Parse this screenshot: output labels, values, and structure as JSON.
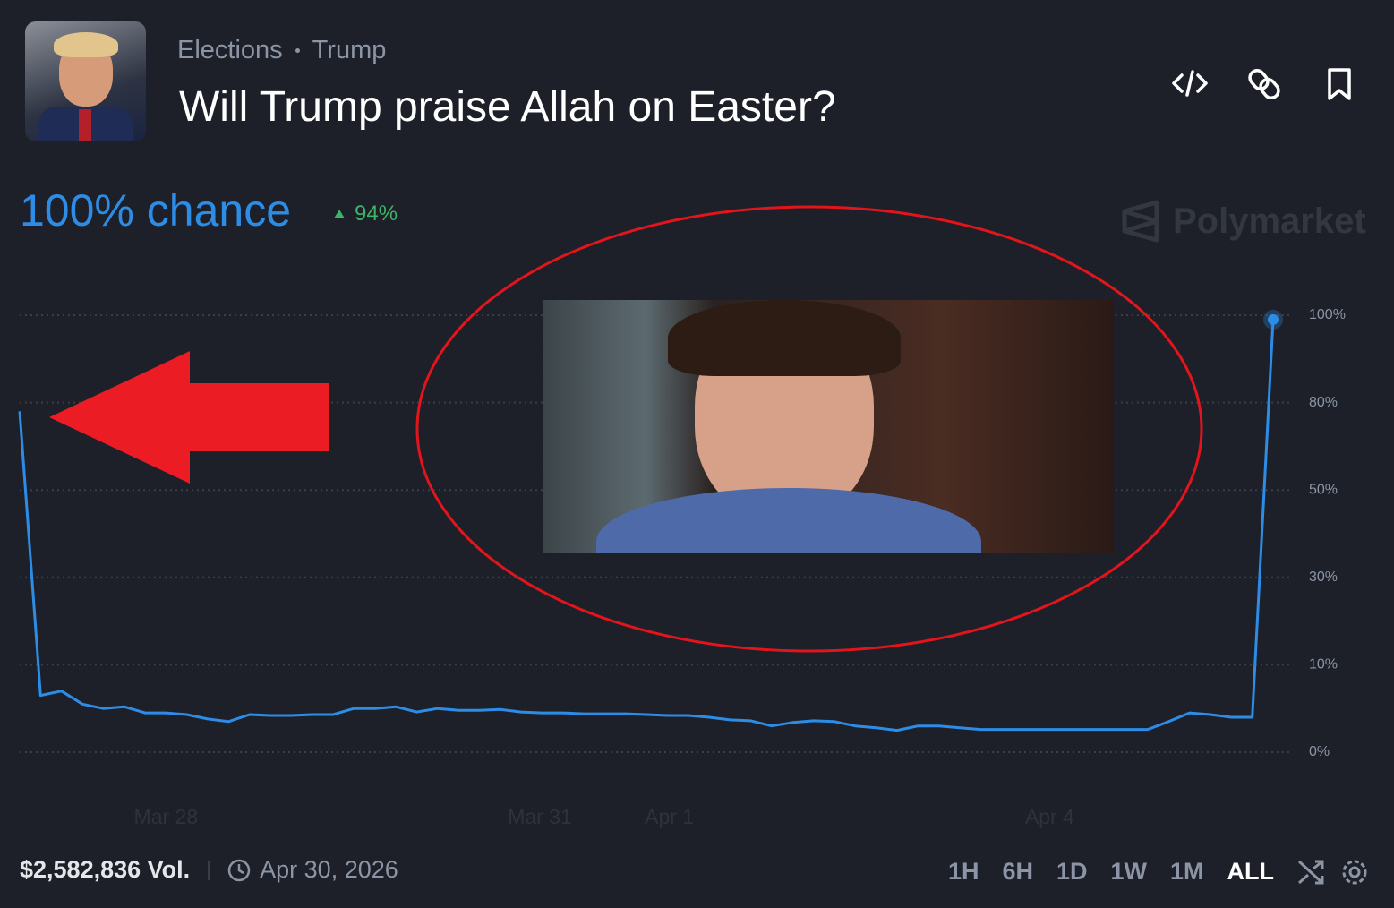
{
  "header": {
    "breadcrumb": [
      "Elections",
      "Trump"
    ],
    "title": "Will Trump praise Allah on Easter?",
    "chance": "100% chance",
    "change": "94%",
    "watermark": "Polymarket"
  },
  "chart_data": {
    "type": "line",
    "x": [
      0,
      1,
      2,
      3,
      4,
      5,
      6,
      7,
      8,
      9,
      10,
      11,
      12,
      13,
      14,
      15,
      16,
      17,
      18,
      19,
      20,
      21,
      22,
      23,
      24,
      25,
      26,
      27,
      28,
      29,
      30,
      31,
      32,
      33,
      34,
      35,
      36,
      37,
      38,
      39,
      40,
      41,
      42,
      43,
      44,
      45,
      46,
      47,
      48,
      49,
      50,
      51,
      52,
      53,
      54,
      55,
      56,
      57,
      58,
      59,
      60
    ],
    "series": [
      {
        "color": "#2d8ce6",
        "values": [
          77,
          6.5,
          7,
          5.5,
          5,
          5.2,
          4.5,
          4.5,
          4.3,
          3.8,
          3.5,
          4.3,
          4.2,
          4.2,
          4.3,
          4.3,
          5,
          5,
          5.2,
          4.6,
          5,
          4.8,
          4.8,
          4.9,
          4.6,
          4.5,
          4.5,
          4.4,
          4.4,
          4.4,
          4.3,
          4.2,
          4.2,
          4,
          3.7,
          3.6,
          3,
          3.4,
          3.6,
          3.5,
          3,
          2.8,
          2.5,
          3,
          3,
          2.8,
          2.6,
          2.6,
          2.6,
          2.6,
          2.6,
          2.6,
          2.6,
          2.6,
          2.6,
          3.5,
          4.5,
          4.3,
          4,
          4,
          99
        ]
      }
    ],
    "xlim": [
      0,
      60
    ],
    "xticks": [
      {
        "value": 7,
        "label": "Mar 28"
      },
      {
        "value": 24.9,
        "label": "Mar 31"
      },
      {
        "value": 31.1,
        "label": "Apr 1"
      },
      {
        "value": 49.3,
        "label": "Apr 4"
      }
    ],
    "ylim": [
      0,
      100
    ],
    "yticks": [
      {
        "value": 0,
        "label": "0%"
      },
      {
        "value": 10,
        "label": "10%"
      },
      {
        "value": 30,
        "label": "30%"
      },
      {
        "value": 50,
        "label": "50%"
      },
      {
        "value": 80,
        "label": "80%"
      },
      {
        "value": 100,
        "label": "100%"
      }
    ],
    "grid": true
  },
  "footer": {
    "volume": "$2,582,836 Vol.",
    "end_date": "Apr 30, 2026",
    "ranges": [
      "1H",
      "6H",
      "1D",
      "1W",
      "1M",
      "ALL"
    ]
  }
}
